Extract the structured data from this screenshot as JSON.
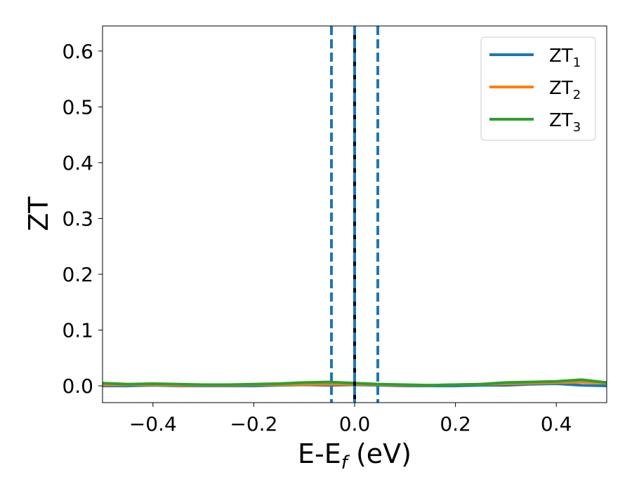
{
  "chart_data": {
    "type": "line",
    "xlabel_main": "E-E",
    "xlabel_sub": "f",
    "xlabel_unit": " (eV)",
    "ylabel": "ZT",
    "xlim": [
      -0.5,
      0.5
    ],
    "ylim": [
      -0.03,
      0.645
    ],
    "xticks": [
      -0.4,
      -0.2,
      0.0,
      0.2,
      0.4
    ],
    "xtick_labels": [
      "−0.4",
      "−0.2",
      "0.0",
      "0.2",
      "0.4"
    ],
    "yticks": [
      0.0,
      0.1,
      0.2,
      0.3,
      0.4,
      0.5,
      0.6
    ],
    "ytick_labels": [
      "0.0",
      "0.1",
      "0.2",
      "0.3",
      "0.4",
      "0.5",
      "0.6"
    ],
    "grid": false,
    "legend_position": "top-right",
    "series": [
      {
        "name": "ZT",
        "sub": "1",
        "color": "#1f77b4",
        "x": [
          -0.5,
          -0.45,
          -0.4,
          -0.35,
          -0.3,
          -0.25,
          -0.2,
          -0.15,
          -0.1,
          -0.05,
          0.0,
          0.05,
          0.1,
          0.15,
          0.2,
          0.25,
          0.3,
          0.35,
          0.4,
          0.45,
          0.5
        ],
        "y": [
          0.0,
          0.0,
          0.001,
          0.0,
          0.0,
          0.0,
          0.0,
          0.001,
          0.002,
          0.001,
          0.002,
          0.001,
          0.0,
          0.0,
          0.0,
          0.001,
          0.001,
          0.003,
          0.004,
          0.001,
          0.0
        ]
      },
      {
        "name": "ZT",
        "sub": "2",
        "color": "#ff7f0e",
        "x": [
          -0.5,
          -0.45,
          -0.4,
          -0.35,
          -0.3,
          -0.25,
          -0.2,
          -0.15,
          -0.1,
          -0.05,
          0.0,
          0.05,
          0.1,
          0.15,
          0.2,
          0.25,
          0.3,
          0.35,
          0.4,
          0.45,
          0.5
        ],
        "y": [
          0.002,
          0.002,
          0.002,
          0.001,
          0.001,
          0.001,
          0.002,
          0.002,
          0.003,
          0.003,
          0.003,
          0.002,
          0.001,
          0.001,
          0.002,
          0.003,
          0.004,
          0.005,
          0.006,
          0.007,
          0.005
        ]
      },
      {
        "name": "ZT",
        "sub": "3",
        "color": "#2ca02c",
        "x": [
          -0.5,
          -0.45,
          -0.4,
          -0.35,
          -0.3,
          -0.25,
          -0.2,
          -0.15,
          -0.1,
          -0.05,
          0.0,
          0.05,
          0.1,
          0.15,
          0.2,
          0.25,
          0.3,
          0.35,
          0.4,
          0.45,
          0.5
        ],
        "y": [
          0.005,
          0.003,
          0.004,
          0.003,
          0.002,
          0.002,
          0.003,
          0.004,
          0.006,
          0.007,
          0.005,
          0.003,
          0.002,
          0.001,
          0.002,
          0.003,
          0.006,
          0.007,
          0.008,
          0.011,
          0.006
        ]
      }
    ],
    "vlines": [
      {
        "x": -0.046,
        "style": "dashed",
        "color": "#1f77b4"
      },
      {
        "x": 0.0,
        "style": "solid",
        "color": "#000000"
      },
      {
        "x": 0.0,
        "style": "dashed",
        "color": "#1f77b4"
      },
      {
        "x": 0.046,
        "style": "dashed",
        "color": "#1f77b4"
      }
    ]
  }
}
